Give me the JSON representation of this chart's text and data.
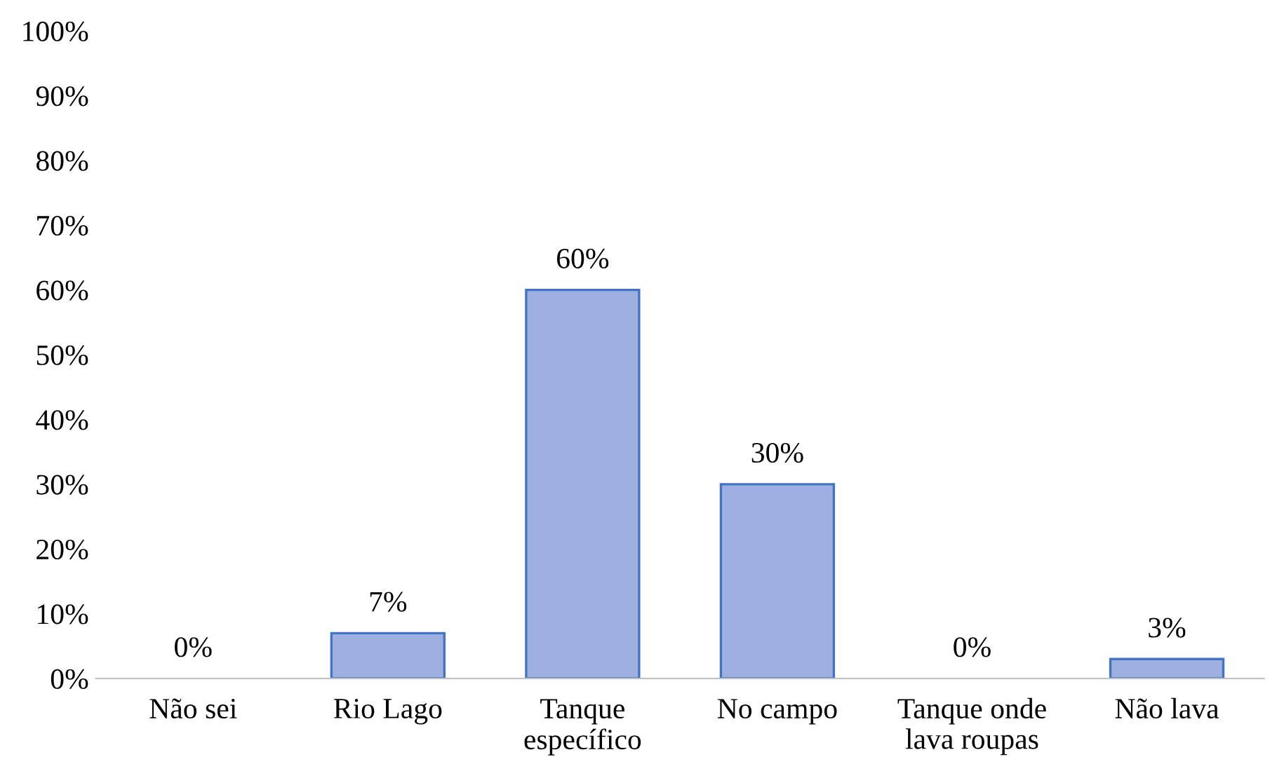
{
  "chart_data": {
    "type": "bar",
    "categories": [
      "Não sei",
      "Rio Lago",
      "Tanque específico",
      "No campo",
      "Tanque onde lava roupas",
      "Não lava"
    ],
    "values": [
      0,
      7,
      60,
      30,
      0,
      3
    ],
    "value_labels": [
      "0%",
      "7%",
      "60%",
      "30%",
      "0%",
      "3%"
    ],
    "color": "#9db0e0",
    "ylim": [
      0,
      100
    ],
    "yticks": [
      {
        "value": 0,
        "label": "0%"
      },
      {
        "value": 10,
        "label": "10%"
      },
      {
        "value": 20,
        "label": "20%"
      },
      {
        "value": 30,
        "label": "30%"
      },
      {
        "value": 40,
        "label": "40%"
      },
      {
        "value": 50,
        "label": "50%"
      },
      {
        "value": 60,
        "label": "60%"
      },
      {
        "value": 70,
        "label": "70%"
      },
      {
        "value": 80,
        "label": "80%"
      },
      {
        "value": 90,
        "label": "90%"
      },
      {
        "value": 100,
        "label": "100%"
      }
    ],
    "grid": false
  }
}
